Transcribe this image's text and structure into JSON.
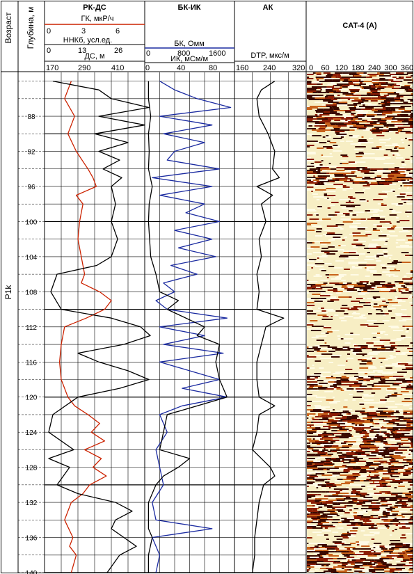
{
  "chart_data": {
    "type": "line",
    "title": "",
    "columns": {
      "age": "Возраст",
      "depth": "Глубина, м",
      "rk": "РК-ДС",
      "bk": "БК-ИК",
      "ak": "АК",
      "cat": "CAT-4 (A)"
    },
    "age_label": "P1k",
    "depth_range": [
      83,
      140
    ],
    "depth_ticks": [
      88,
      92,
      96,
      100,
      104,
      108,
      112,
      116,
      120,
      124,
      128,
      132,
      136,
      140
    ],
    "curve_headers": {
      "gk": {
        "label": "ГК, мкР/ч",
        "min": "0",
        "mid": "3",
        "max": "6",
        "range": [
          0,
          6
        ],
        "color": "#cc2200"
      },
      "nnk": {
        "label": "ННКб, усл.ед.",
        "min": "0",
        "mid": "13",
        "max": "26"
      },
      "ds": {
        "label": "ДС, м",
        "ticks": [
          "170",
          "290",
          "410"
        ]
      },
      "bk": {
        "label": "БК, Омм",
        "min": "0",
        "mid": "800",
        "max": "1600",
        "color": "#1a2aa0"
      },
      "ik": {
        "label": "ИК, мСм/м",
        "ticks": [
          "0",
          "40",
          "80"
        ],
        "range": [
          0,
          120
        ]
      },
      "dtp": {
        "label": "DTP, мкс/м",
        "ticks": [
          "160",
          "240",
          "320"
        ],
        "range": [
          160,
          320
        ]
      },
      "cat": {
        "ticks": [
          "0",
          "60",
          "120",
          "180",
          "240",
          "300",
          "360"
        ]
      }
    },
    "series": [
      {
        "name": "ГК",
        "axis": [
          0,
          6
        ],
        "color": "#cc2200",
        "points": [
          [
            84,
            1.6
          ],
          [
            86,
            1.2
          ],
          [
            88,
            1.8
          ],
          [
            90,
            1.4
          ],
          [
            92,
            1.9
          ],
          [
            94,
            2.6
          ],
          [
            95,
            2.9
          ],
          [
            96,
            3.1
          ],
          [
            97,
            1.9
          ],
          [
            98,
            2.3
          ],
          [
            100,
            2.1
          ],
          [
            102,
            2.0
          ],
          [
            104,
            2.2
          ],
          [
            106,
            2.4
          ],
          [
            107,
            2.2
          ],
          [
            108,
            3.3
          ],
          [
            109,
            4.0
          ],
          [
            110,
            3.6
          ],
          [
            111,
            2.5
          ],
          [
            112,
            1.2
          ],
          [
            114,
            1.0
          ],
          [
            116,
            0.9
          ],
          [
            118,
            1.0
          ],
          [
            120,
            1.4
          ],
          [
            121,
            1.8
          ],
          [
            122,
            2.6
          ],
          [
            123,
            3.3
          ],
          [
            124,
            2.8
          ],
          [
            125,
            3.6
          ],
          [
            126,
            2.4
          ],
          [
            127,
            3.4
          ],
          [
            128,
            2.9
          ],
          [
            129,
            3.7
          ],
          [
            130,
            2.7
          ],
          [
            131,
            2.3
          ],
          [
            132,
            1.6
          ],
          [
            134,
            1.2
          ],
          [
            136,
            1.7
          ],
          [
            137,
            1.5
          ],
          [
            138,
            1.9
          ],
          [
            140,
            1.6
          ]
        ]
      },
      {
        "name": "ДС",
        "axis": [
          170,
          410
        ],
        "color": "#000000",
        "points": [
          [
            84,
            190
          ],
          [
            85,
            300
          ],
          [
            86,
            330
          ],
          [
            87,
            420
          ],
          [
            88,
            300
          ],
          [
            89,
            410
          ],
          [
            90,
            290
          ],
          [
            91,
            370
          ],
          [
            92,
            300
          ],
          [
            93,
            350
          ],
          [
            94,
            310
          ],
          [
            95,
            355
          ],
          [
            96,
            330
          ],
          [
            98,
            340
          ],
          [
            100,
            330
          ],
          [
            102,
            345
          ],
          [
            104,
            330
          ],
          [
            105,
            295
          ],
          [
            106,
            200
          ],
          [
            108,
            185
          ],
          [
            110,
            210
          ],
          [
            111,
            330
          ],
          [
            112,
            400
          ],
          [
            113,
            450
          ],
          [
            114,
            360
          ],
          [
            115,
            250
          ],
          [
            116,
            300
          ],
          [
            117,
            370
          ],
          [
            118,
            420
          ],
          [
            119,
            350
          ],
          [
            120,
            250
          ],
          [
            122,
            190
          ],
          [
            124,
            180
          ],
          [
            126,
            240
          ],
          [
            127,
            180
          ],
          [
            128,
            230
          ],
          [
            130,
            200
          ],
          [
            131,
            250
          ],
          [
            132,
            340
          ],
          [
            133,
            380
          ],
          [
            134,
            340
          ],
          [
            135,
            330
          ],
          [
            136,
            360
          ],
          [
            137,
            390
          ],
          [
            138,
            350
          ],
          [
            140,
            320
          ]
        ]
      },
      {
        "name": "ИК",
        "axis": [
          0,
          120
        ],
        "color": "#1a2aa0",
        "points": [
          [
            84,
            20
          ],
          [
            85,
            40
          ],
          [
            86,
            70
          ],
          [
            87,
            115
          ],
          [
            88,
            20
          ],
          [
            89,
            90
          ],
          [
            90,
            25
          ],
          [
            91,
            80
          ],
          [
            92,
            40
          ],
          [
            93,
            30
          ],
          [
            94,
            100
          ],
          [
            95,
            10
          ],
          [
            96,
            90
          ],
          [
            97,
            20
          ],
          [
            98,
            80
          ],
          [
            99,
            55
          ],
          [
            100,
            100
          ],
          [
            101,
            40
          ],
          [
            102,
            90
          ],
          [
            103,
            45
          ],
          [
            104,
            95
          ],
          [
            105,
            35
          ],
          [
            106,
            70
          ],
          [
            107,
            25
          ],
          [
            108,
            40
          ],
          [
            109,
            15
          ],
          [
            110,
            30
          ],
          [
            111,
            110
          ],
          [
            112,
            20
          ],
          [
            113,
            80
          ],
          [
            114,
            25
          ],
          [
            115,
            105
          ],
          [
            116,
            20
          ],
          [
            117,
            60
          ],
          [
            118,
            100
          ],
          [
            119,
            50
          ],
          [
            120,
            110
          ],
          [
            121,
            50
          ],
          [
            122,
            20
          ],
          [
            124,
            30
          ],
          [
            126,
            15
          ],
          [
            128,
            20
          ],
          [
            130,
            25
          ],
          [
            132,
            10
          ],
          [
            134,
            15
          ],
          [
            135,
            90
          ],
          [
            136,
            10
          ],
          [
            138,
            20
          ],
          [
            140,
            15
          ]
        ]
      },
      {
        "name": "ИК (black)",
        "axis": [
          0,
          120
        ],
        "color": "#000000",
        "points": [
          [
            84,
            5
          ],
          [
            86,
            5
          ],
          [
            88,
            8
          ],
          [
            90,
            5
          ],
          [
            92,
            6
          ],
          [
            94,
            5
          ],
          [
            96,
            10
          ],
          [
            98,
            6
          ],
          [
            100,
            5
          ],
          [
            104,
            8
          ],
          [
            106,
            15
          ],
          [
            108,
            20
          ],
          [
            109,
            45
          ],
          [
            110,
            30
          ],
          [
            112,
            80
          ],
          [
            113,
            70
          ],
          [
            114,
            100
          ],
          [
            116,
            95
          ],
          [
            118,
            100
          ],
          [
            120,
            110
          ],
          [
            122,
            30
          ],
          [
            124,
            25
          ],
          [
            126,
            20
          ],
          [
            127,
            60
          ],
          [
            128,
            45
          ],
          [
            129,
            25
          ],
          [
            130,
            15
          ],
          [
            132,
            5
          ],
          [
            135,
            5
          ],
          [
            136,
            10
          ],
          [
            138,
            5
          ],
          [
            140,
            5
          ]
        ]
      },
      {
        "name": "DTP",
        "axis": [
          160,
          320
        ],
        "color": "#000000",
        "points": [
          [
            84,
            250
          ],
          [
            85,
            220
          ],
          [
            86,
            210
          ],
          [
            88,
            215
          ],
          [
            90,
            235
          ],
          [
            92,
            250
          ],
          [
            94,
            245
          ],
          [
            95,
            260
          ],
          [
            96,
            210
          ],
          [
            97,
            245
          ],
          [
            98,
            220
          ],
          [
            100,
            230
          ],
          [
            102,
            215
          ],
          [
            104,
            220
          ],
          [
            106,
            210
          ],
          [
            108,
            215
          ],
          [
            110,
            210
          ],
          [
            111,
            270
          ],
          [
            112,
            230
          ],
          [
            114,
            220
          ],
          [
            116,
            210
          ],
          [
            118,
            210
          ],
          [
            120,
            215
          ],
          [
            121,
            250
          ],
          [
            122,
            215
          ],
          [
            124,
            210
          ],
          [
            126,
            200
          ],
          [
            128,
            240
          ],
          [
            129,
            250
          ],
          [
            130,
            225
          ],
          [
            132,
            215
          ],
          [
            134,
            210
          ],
          [
            136,
            205
          ],
          [
            138,
            205
          ],
          [
            140,
            200
          ]
        ]
      }
    ]
  }
}
